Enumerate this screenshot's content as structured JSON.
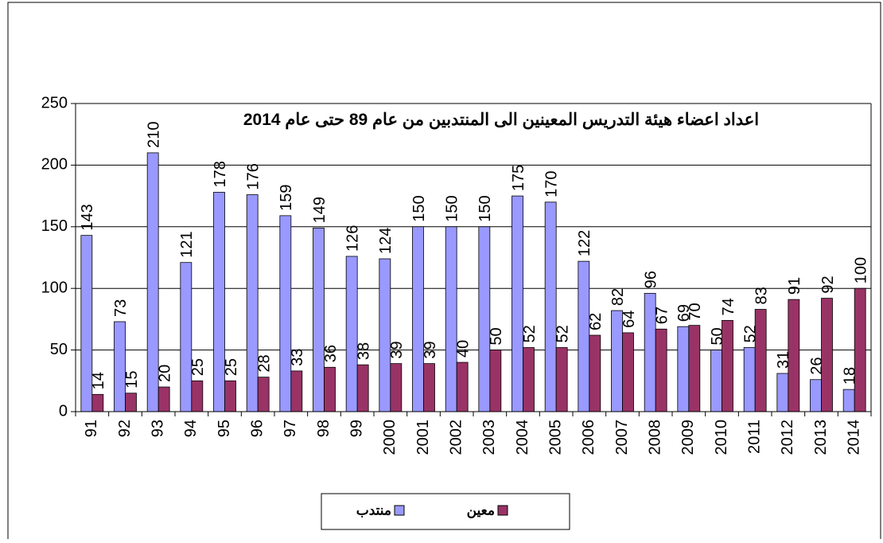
{
  "chart_data": {
    "type": "bar",
    "title": "اعداد اعضاء هيئة التدريس المعينين الى المنتدبين من عام 89  حتى عام 2014",
    "categories": [
      "91",
      "92",
      "93",
      "94",
      "95",
      "96",
      "97",
      "98",
      "99",
      "2000",
      "2001",
      "2002",
      "2003",
      "2004",
      "2005",
      "2006",
      "2007",
      "2008",
      "2009",
      "2010",
      "2011",
      "2012",
      "2013",
      "2014"
    ],
    "series": [
      {
        "name": "منتدب",
        "color": "#9999ff",
        "values": [
          143,
          73,
          210,
          121,
          178,
          176,
          159,
          149,
          126,
          124,
          150,
          150,
          150,
          175,
          170,
          122,
          82,
          96,
          69,
          50,
          52,
          31,
          26,
          18
        ]
      },
      {
        "name": "معين",
        "color": "#993366",
        "values": [
          14,
          15,
          20,
          25,
          25,
          28,
          33,
          36,
          38,
          39,
          39,
          40,
          50,
          52,
          52,
          62,
          64,
          67,
          70,
          74,
          83,
          91,
          92,
          100
        ]
      }
    ],
    "ylim": [
      0,
      250
    ],
    "yticks": [
      0,
      50,
      100,
      150,
      200,
      250
    ],
    "grid": true,
    "legend": "bottom"
  }
}
